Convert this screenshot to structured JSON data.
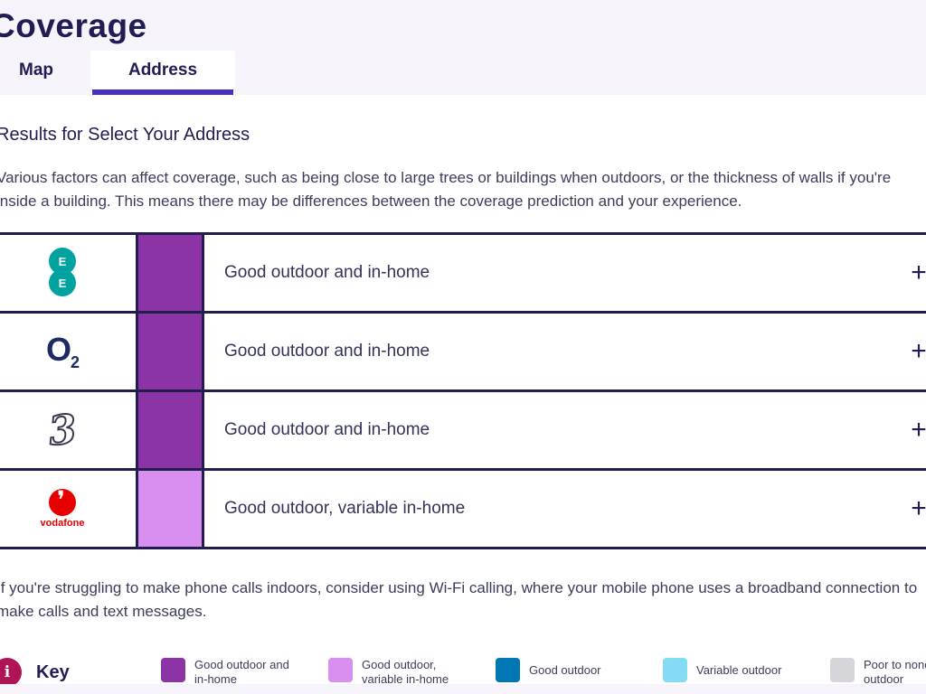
{
  "page": {
    "title": "Coverage"
  },
  "tabs": [
    {
      "label": "Map",
      "active": false
    },
    {
      "label": "Address",
      "active": true
    }
  ],
  "results": {
    "heading": "Results for Select Your Address",
    "intro": "Various factors can affect coverage, such as being close to large trees or buildings when outdoors, or the thickness of walls if you're inside a building. This means there may be differences between the coverage prediction and your experience.",
    "wifi_note": "If you're struggling to make phone calls indoors, consider using Wi-Fi calling, where your mobile phone uses a broadband connection to make calls and text messages."
  },
  "coverage_table": {
    "expand_label": "+",
    "rows": [
      {
        "operator": "EE",
        "rating": "Good outdoor and in-home",
        "color": "#8c33a6"
      },
      {
        "operator": "O2",
        "rating": "Good outdoor and in-home",
        "color": "#8c33a6"
      },
      {
        "operator": "Three",
        "rating": "Good outdoor and in-home",
        "color": "#8c33a6"
      },
      {
        "operator": "Vodafone",
        "rating": "Good outdoor, variable in-home",
        "color": "#d98ff0"
      }
    ]
  },
  "logos": {
    "ee": {
      "letter": "E"
    },
    "o2": {
      "letter": "O",
      "sub": "2"
    },
    "three": {
      "glyph": "3"
    },
    "vodafone": {
      "word": "vodafone"
    }
  },
  "key": {
    "label": "Key",
    "info_glyph": "i",
    "items": [
      {
        "label": "Good outdoor and in-home",
        "color": "#8c33a6"
      },
      {
        "label": "Good outdoor, variable in-home",
        "color": "#d98ff0"
      },
      {
        "label": "Good outdoor",
        "color": "#0077b5"
      },
      {
        "label": "Variable outdoor",
        "color": "#85daf4"
      },
      {
        "label": "Poor to none outdoor",
        "color": "#d6d5da"
      }
    ]
  },
  "colors": {
    "accent_underline": "#4b2fc0",
    "heading_navy": "#211d54",
    "border_navy": "#211d4e",
    "header_bg": "#f6f4fa",
    "info_badge": "#b11357",
    "ee_teal": "#00a39f",
    "o2_navy": "#1e2a63",
    "vodafone_red": "#e60000"
  }
}
